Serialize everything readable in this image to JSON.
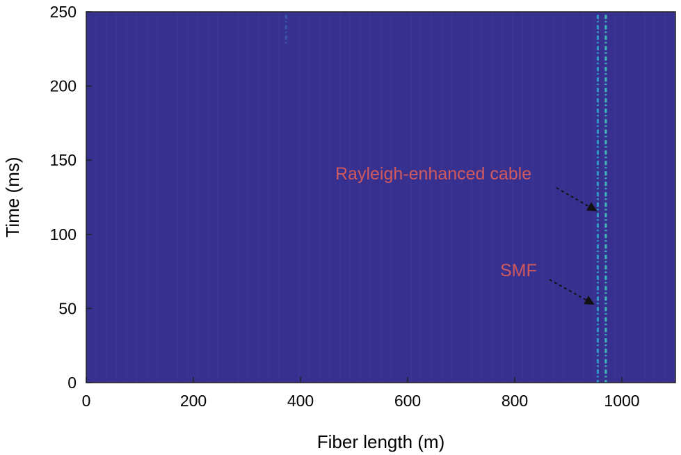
{
  "chart_data": {
    "type": "heatmap",
    "title": "",
    "xlabel": "Fiber length (m)",
    "ylabel": "Time (ms)",
    "xlim": [
      0,
      1100
    ],
    "ylim": [
      0,
      250
    ],
    "xticks": [
      0,
      200,
      400,
      600,
      800,
      1000
    ],
    "yticks": [
      0,
      50,
      100,
      150,
      200,
      250
    ],
    "grid": false,
    "background_color": "#38308f",
    "bright_traces": [
      {
        "x": 955,
        "color": "#2fb1d4",
        "ymin": 0,
        "ymax": 248
      },
      {
        "x": 970,
        "color": "#3fd3bb",
        "ymin": 0,
        "ymax": 248
      },
      {
        "x": 373,
        "color": "#3a5fb0",
        "ymin": 228,
        "ymax": 248
      }
    ],
    "annotations": [
      {
        "text": "Rayleigh-enhanced cable",
        "color": "#d0595e",
        "target": [
          955,
          115
        ]
      },
      {
        "text": "SMF",
        "color": "#d0595e",
        "target": [
          950,
          52
        ]
      }
    ]
  }
}
